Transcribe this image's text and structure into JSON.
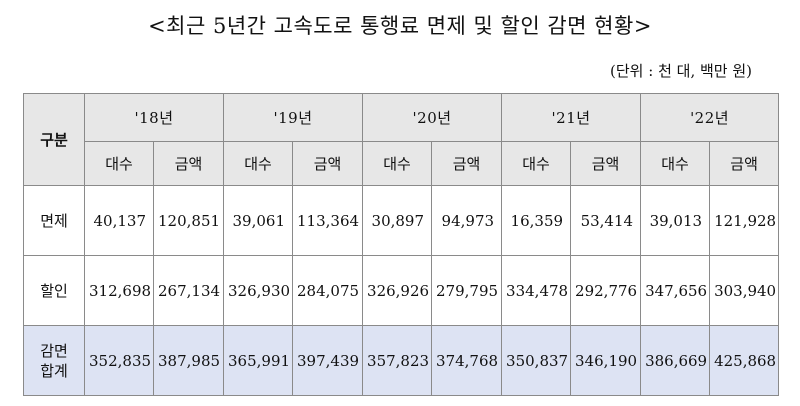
{
  "title": "<최근 5년간 고속도로 통행료 면제 및 할인 감면 현황>",
  "unit": "(단위 : 천 대, 백만 원)",
  "table": {
    "corner": "구분",
    "years": [
      "'18년",
      "'19년",
      "'20년",
      "'21년",
      "'22년"
    ],
    "sub_headers": {
      "count": "대수",
      "amount": "금액"
    },
    "rows": [
      {
        "label": "면제",
        "values": [
          "40,137",
          "120,851",
          "39,061",
          "113,364",
          "30,897",
          "94,973",
          "16,359",
          "53,414",
          "39,013",
          "121,928"
        ]
      },
      {
        "label": "할인",
        "values": [
          "312,698",
          "267,134",
          "326,930",
          "284,075",
          "326,926",
          "279,795",
          "334,478",
          "292,776",
          "347,656",
          "303,940"
        ]
      }
    ],
    "total": {
      "label_line1": "감면",
      "label_line2": "합계",
      "values": [
        "352,835",
        "387,985",
        "365,991",
        "397,439",
        "357,823",
        "374,768",
        "350,837",
        "346,190",
        "386,669",
        "425,868"
      ]
    }
  },
  "colors": {
    "header_bg": "#e7e7e7",
    "total_row_bg": "#dde3f3",
    "border": "#8a8a8a"
  }
}
